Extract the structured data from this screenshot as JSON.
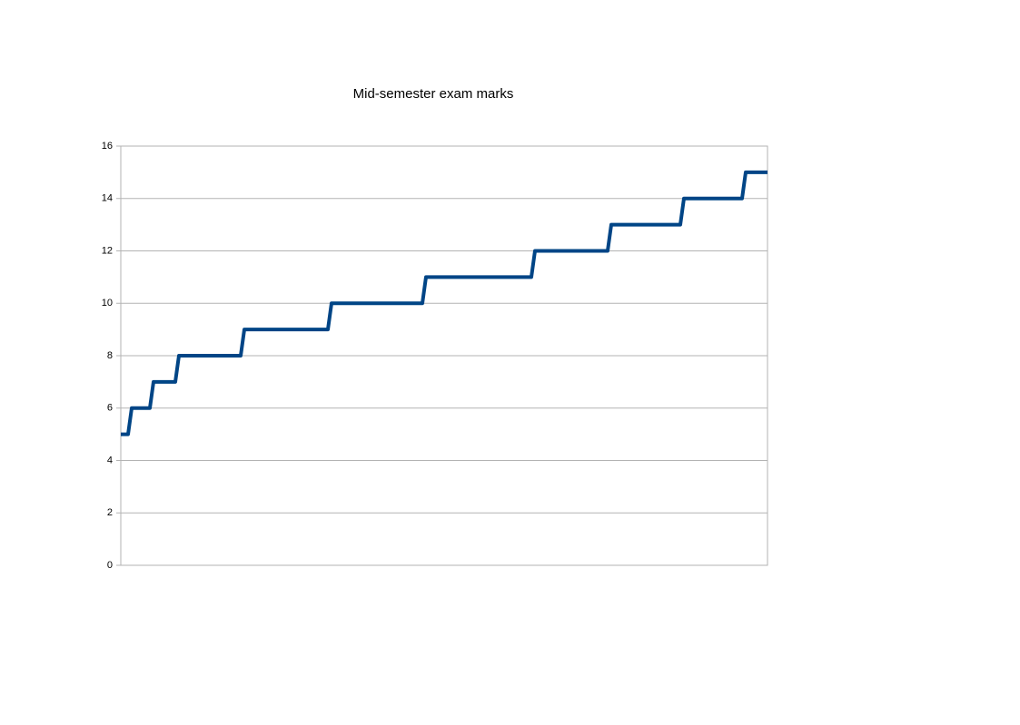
{
  "chart_data": {
    "type": "line",
    "title": "Mid-semester exam marks",
    "series": [
      {
        "color": "#004586",
        "values": [
          5,
          5,
          5,
          6,
          6,
          6,
          6,
          6,
          6,
          7,
          7,
          7,
          7,
          7,
          7,
          7,
          8,
          8,
          8,
          8,
          8,
          8,
          8,
          8,
          8,
          8,
          8,
          8,
          8,
          8,
          8,
          8,
          8,
          8,
          9,
          9,
          9,
          9,
          9,
          9,
          9,
          9,
          9,
          9,
          9,
          9,
          9,
          9,
          9,
          9,
          9,
          9,
          9,
          9,
          9,
          9,
          9,
          9,
          10,
          10,
          10,
          10,
          10,
          10,
          10,
          10,
          10,
          10,
          10,
          10,
          10,
          10,
          10,
          10,
          10,
          10,
          10,
          10,
          10,
          10,
          10,
          10,
          10,
          10,
          11,
          11,
          11,
          11,
          11,
          11,
          11,
          11,
          11,
          11,
          11,
          11,
          11,
          11,
          11,
          11,
          11,
          11,
          11,
          11,
          11,
          11,
          11,
          11,
          11,
          11,
          11,
          11,
          11,
          11,
          12,
          12,
          12,
          12,
          12,
          12,
          12,
          12,
          12,
          12,
          12,
          12,
          12,
          12,
          12,
          12,
          12,
          12,
          12,
          12,
          12,
          13,
          13,
          13,
          13,
          13,
          13,
          13,
          13,
          13,
          13,
          13,
          13,
          13,
          13,
          13,
          13,
          13,
          13,
          13,
          13,
          14,
          14,
          14,
          14,
          14,
          14,
          14,
          14,
          14,
          14,
          14,
          14,
          14,
          14,
          14,
          14,
          14,
          15,
          15,
          15,
          15,
          15,
          15,
          15
        ]
      }
    ],
    "ylim": [
      0,
      16
    ],
    "yticks": [
      0,
      2,
      4,
      6,
      8,
      10,
      12,
      14,
      16
    ],
    "grid": true
  }
}
